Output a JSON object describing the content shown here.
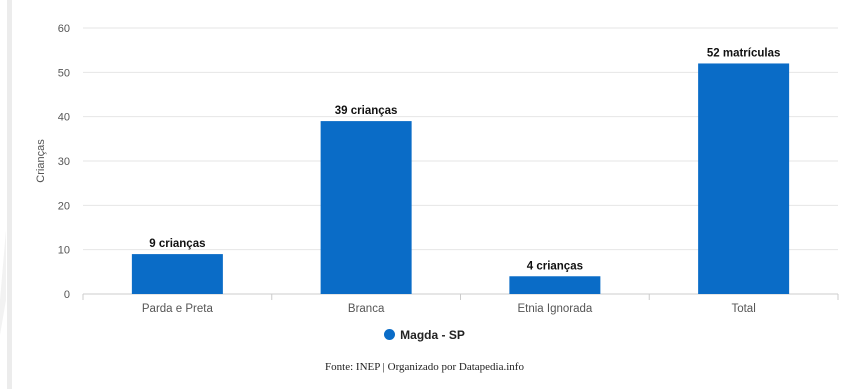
{
  "chart_data": {
    "type": "bar",
    "categories": [
      "Parda e Preta",
      "Branca",
      "Etnia Ignorada",
      "Total"
    ],
    "series": [
      {
        "name": "Magda - SP",
        "values": [
          9,
          39,
          4,
          52
        ],
        "color": "#0a6cc7"
      }
    ],
    "data_labels": [
      "9 crianças",
      "39 crianças",
      "4 crianças",
      "52 matrículas"
    ],
    "title": "",
    "xlabel": "",
    "ylabel": "Crianças",
    "ylim": [
      0,
      60
    ],
    "yticks": [
      "0",
      "10",
      "20",
      "30",
      "40",
      "50",
      "60"
    ],
    "grid": true,
    "legend_position": "bottom"
  },
  "source": {
    "label": "Fonte",
    "text": ": INEP | Organizado por Datapedia.info"
  },
  "colors": {
    "grid": "#e6e6e6",
    "axis": "#cccccc",
    "tick_text": "#555555",
    "data_label_text": "#111111"
  }
}
